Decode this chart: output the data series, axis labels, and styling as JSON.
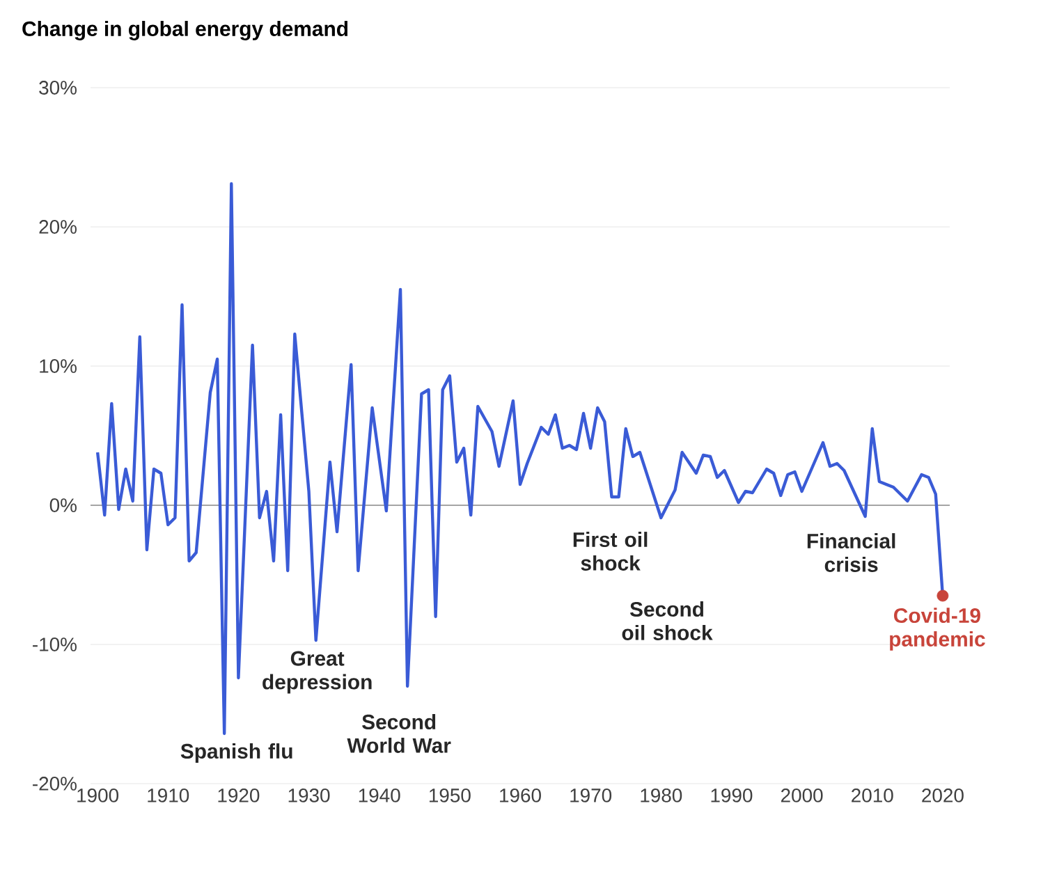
{
  "chart_data": {
    "type": "line",
    "title": "Change in global energy demand",
    "xlim": [
      1899,
      2021
    ],
    "ylim": [
      -20,
      30
    ],
    "xticks": [
      1900,
      1910,
      1920,
      1930,
      1940,
      1950,
      1960,
      1970,
      1980,
      1990,
      2000,
      2010,
      2020
    ],
    "yticks": [
      {
        "value": -20,
        "label": "-20%"
      },
      {
        "value": -10,
        "label": "-10%"
      },
      {
        "value": 0,
        "label": "0%"
      },
      {
        "value": 10,
        "label": "10%"
      },
      {
        "value": 20,
        "label": "20%"
      },
      {
        "value": 30,
        "label": "30%"
      }
    ],
    "grid": "y",
    "ref_lines": [
      {
        "axis": "y",
        "value": 0,
        "color": "#8a8a8a"
      }
    ],
    "series": [
      {
        "color": "#3a5bd6",
        "x": [
          1900,
          1901,
          1902,
          1903,
          1904,
          1905,
          1906,
          1907,
          1908,
          1909,
          1910,
          1911,
          1912,
          1913,
          1914,
          1916,
          1917,
          1918,
          1919,
          1920,
          1922,
          1923,
          1924,
          1925,
          1926,
          1927,
          1928,
          1930,
          1931,
          1933,
          1934,
          1936,
          1937,
          1939,
          1941,
          1943,
          1944,
          1946,
          1947,
          1948,
          1949,
          1950,
          1951,
          1952,
          1953,
          1954,
          1956,
          1957,
          1959,
          1960,
          1961,
          1963,
          1964,
          1965,
          1966,
          1967,
          1968,
          1969,
          1970,
          1971,
          1972,
          1973,
          1974,
          1975,
          1976,
          1977,
          1980,
          1982,
          1983,
          1985,
          1986,
          1987,
          1988,
          1989,
          1991,
          1992,
          1993,
          1995,
          1996,
          1997,
          1998,
          1999,
          2000,
          2003,
          2004,
          2005,
          2006,
          2009,
          2010,
          2011,
          2013,
          2015,
          2017,
          2018,
          2019,
          2020
        ],
        "values": [
          3.8,
          -0.7,
          7.3,
          -0.3,
          2.6,
          0.3,
          12.1,
          -3.2,
          2.6,
          2.3,
          -1.4,
          -0.9,
          14.4,
          -4,
          -3.4,
          8.1,
          10.5,
          -16.4,
          23.1,
          -12.4,
          11.5,
          -0.9,
          1,
          -4,
          6.5,
          -4.7,
          12.3,
          1,
          -9.7,
          3.1,
          -1.9,
          10.1,
          -4.7,
          7,
          -0.4,
          15.5,
          -13,
          8,
          8.3,
          -8,
          8.3,
          9.3,
          3.1,
          4.1,
          -0.7,
          7.1,
          5.3,
          2.8,
          7.5,
          1.5,
          3,
          5.6,
          5.1,
          6.5,
          4.1,
          4.3,
          4,
          6.6,
          4.1,
          7,
          6,
          0.6,
          0.6,
          5.5,
          3.5,
          3.8,
          -0.9,
          1.1,
          3.8,
          2.3,
          3.6,
          3.5,
          2,
          2.5,
          0.2,
          1,
          0.9,
          2.6,
          2.3,
          0.7,
          2.2,
          2.4,
          1,
          4.5,
          2.8,
          3,
          2.5,
          -0.8,
          5.5,
          1.7,
          1.3,
          0.3,
          2.2,
          2,
          0.8,
          -6.5
        ]
      },
      {
        "type": "scatter",
        "color": "#c8443a",
        "x": [
          2020
        ],
        "values": [
          -6.5
        ]
      }
    ],
    "annotations": [
      {
        "text": "Spanish flu",
        "x": 1918,
        "y": -16.4
      },
      {
        "text": "Great depression",
        "x": 1931,
        "y": -9.7
      },
      {
        "text": "Second World War",
        "x": 1944,
        "y": -13
      },
      {
        "text": "First oil shock",
        "x": 1974,
        "y": 0.6
      },
      "Second oil shock",
      {
        "text": "Financial crisis",
        "x": 2009,
        "y": -0.8
      },
      {
        "text": "Covid-19 pandemic",
        "x": 2020,
        "y": -6.5
      }
    ]
  }
}
